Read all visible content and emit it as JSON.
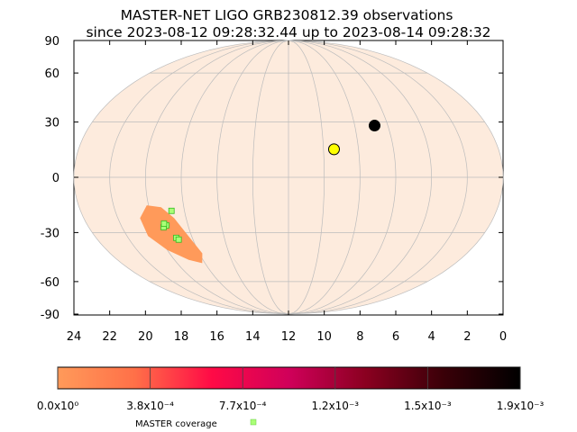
{
  "chart_data": {
    "type": "scatter",
    "projection": "mollweide",
    "title": "MASTER-NET LIGO GRB230812.39 observations",
    "subtitle": "since 2023-08-12 09:28:32.44 up to 2023-08-14 09:28:32",
    "x_axis": {
      "range": [
        24,
        0
      ],
      "ticks": [
        "24",
        "22",
        "20",
        "18",
        "16",
        "14",
        "12",
        "10",
        "8",
        "6",
        "4",
        "2",
        "0"
      ]
    },
    "y_axis": {
      "range": [
        -90,
        90
      ],
      "ticks": [
        "90",
        "60",
        "30",
        "0",
        "-30",
        "-60",
        "-90"
      ]
    },
    "grid": true,
    "sky_color": "#fdebdd",
    "probability_region": {
      "color": "#ff9a5a",
      "outline": [
        [
          20.7,
          -22
        ],
        [
          20.1,
          -15
        ],
        [
          19.3,
          -16
        ],
        [
          18.7,
          -22
        ],
        [
          18.2,
          -32
        ],
        [
          17.8,
          -42
        ],
        [
          18.2,
          -48
        ],
        [
          19.0,
          -46
        ],
        [
          20.0,
          -40
        ],
        [
          20.7,
          -32
        ]
      ]
    },
    "coverage_points": [
      {
        "ra": 19.3,
        "dec": -26
      },
      {
        "ra": 19.5,
        "dec": -27
      },
      {
        "ra": 19.0,
        "dec": -33
      },
      {
        "ra": 18.9,
        "dec": -34
      },
      {
        "ra": 18.75,
        "dec": -18
      },
      {
        "ra": 19.4,
        "dec": -25
      }
    ],
    "markers": [
      {
        "name": "Moon",
        "ra": 6.8,
        "dec": 28,
        "color": "#000000"
      },
      {
        "name": "Sun",
        "ra": 9.4,
        "dec": 15,
        "color": "#ffff00"
      }
    ],
    "colorbar": {
      "gradient": [
        "#ff9a5a",
        "#ff7048",
        "#ff0a46",
        "#d0005a",
        "#8a0020",
        "#3a0008",
        "#000000"
      ],
      "tick_labels": [
        "0.0x10⁰",
        "3.8x10⁻⁴",
        "7.7x10⁻⁴",
        "1.2x10⁻³",
        "1.5x10⁻³",
        "1.9x10⁻³"
      ]
    },
    "legend": {
      "label": "MASTER coverage",
      "color": "#aaff77"
    }
  }
}
